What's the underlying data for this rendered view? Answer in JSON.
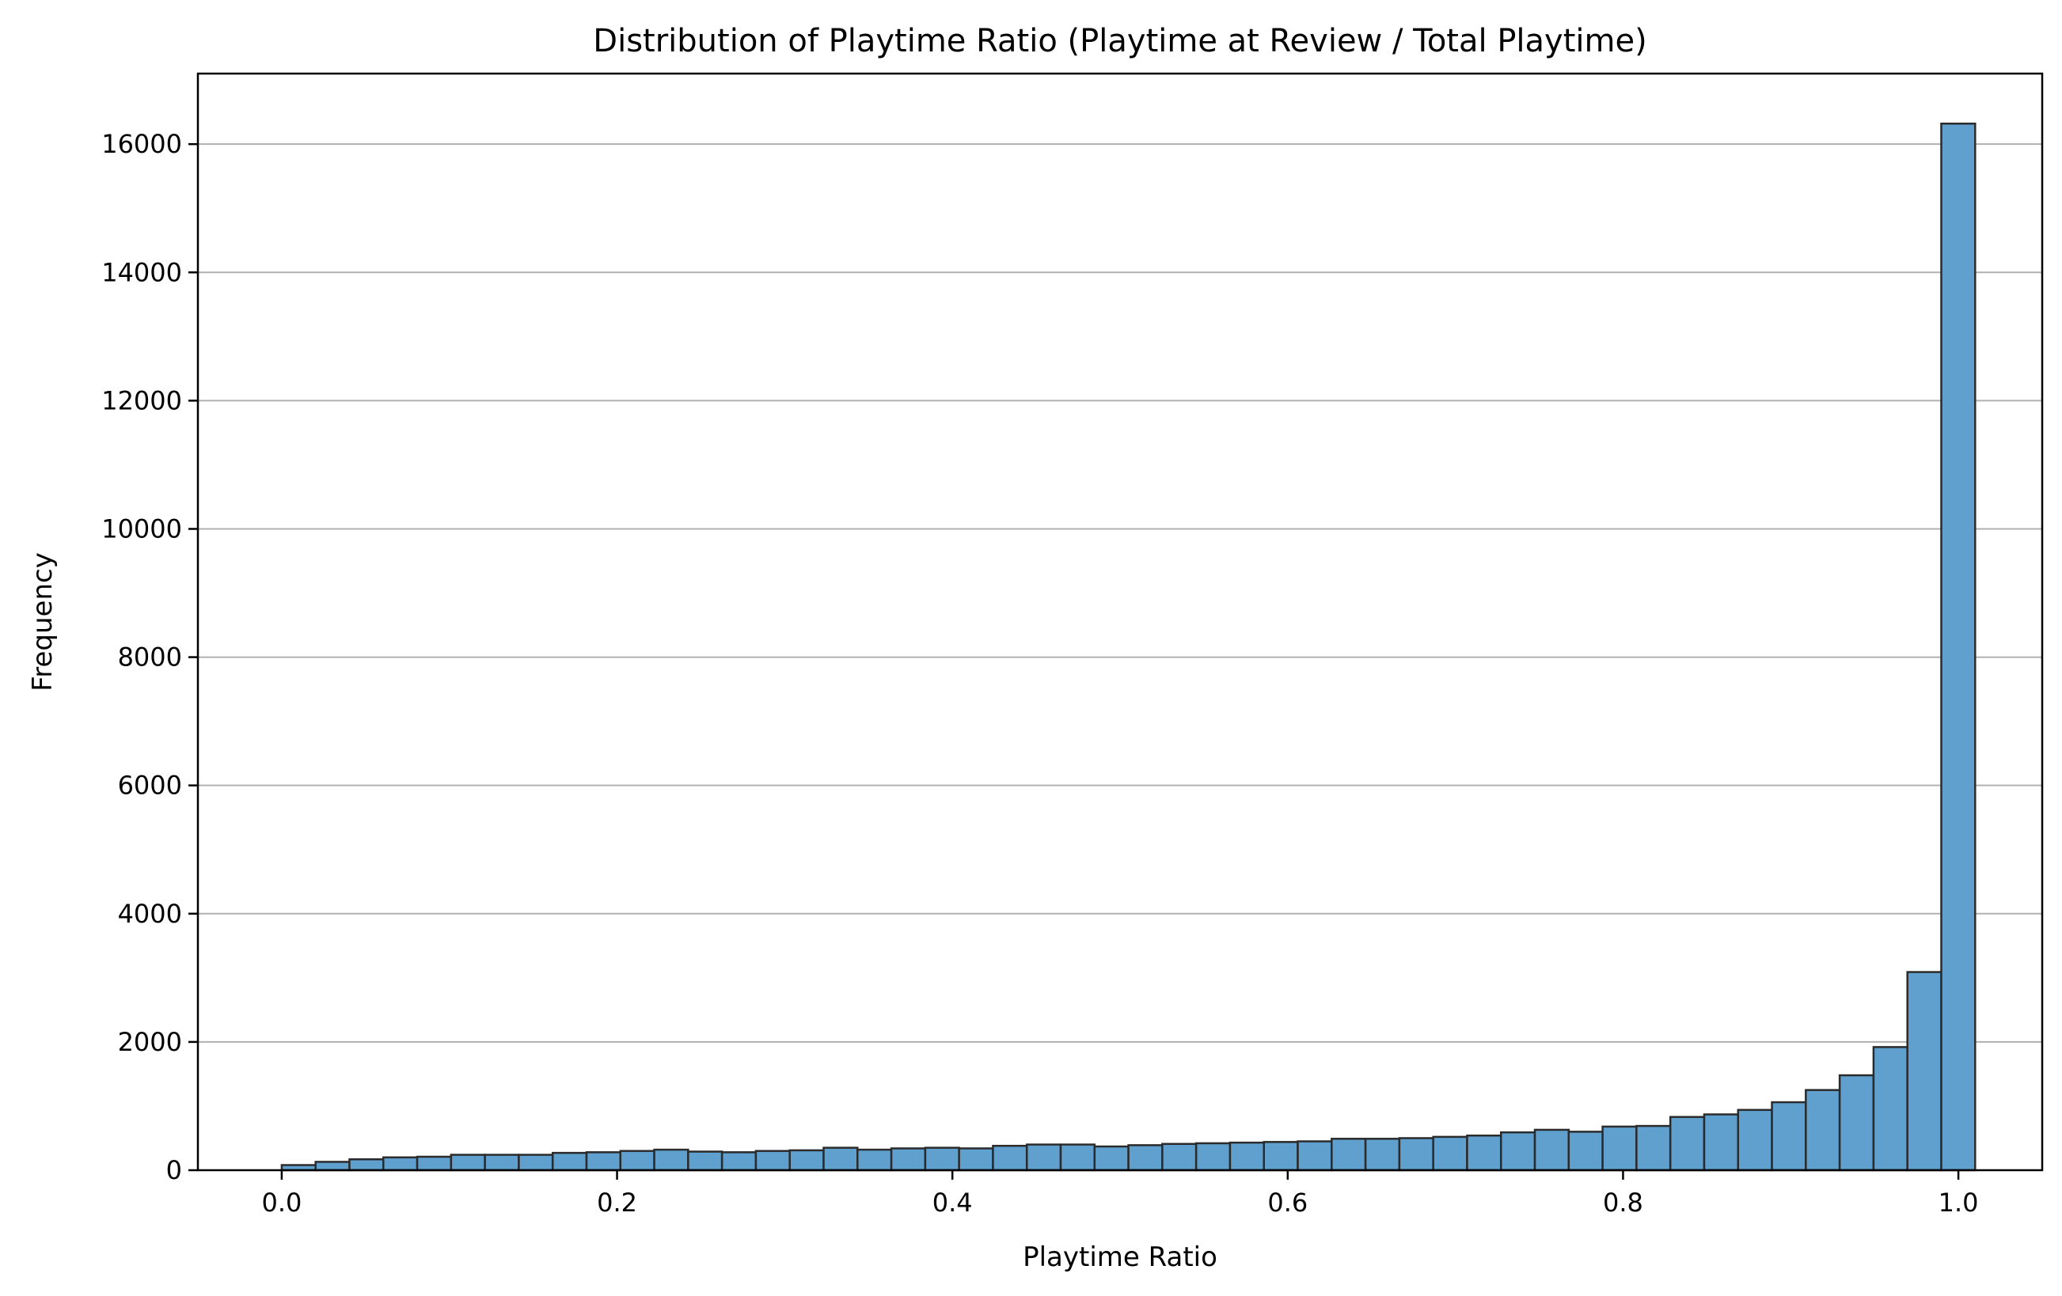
{
  "chart_data": {
    "type": "bar",
    "title": "Distribution of Playtime Ratio (Playtime at Review / Total Playtime)",
    "xlabel": "Playtime Ratio",
    "ylabel": "Frequency",
    "xlim": [
      -0.05,
      1.05
    ],
    "ylim": [
      0,
      17100
    ],
    "grid": "y-major",
    "bar_color": "#5fa0cf",
    "edge_color": "#2b2b2b",
    "x_ticks": [
      {
        "value": 0.0,
        "label": "0.0"
      },
      {
        "value": 0.2,
        "label": "0.2"
      },
      {
        "value": 0.4,
        "label": "0.4"
      },
      {
        "value": 0.6,
        "label": "0.6"
      },
      {
        "value": 0.8,
        "label": "0.8"
      },
      {
        "value": 1.0,
        "label": "1.0"
      }
    ],
    "y_ticks": [
      {
        "value": 0,
        "label": "0"
      },
      {
        "value": 2000,
        "label": "2000"
      },
      {
        "value": 4000,
        "label": "4000"
      },
      {
        "value": 6000,
        "label": "6000"
      },
      {
        "value": 8000,
        "label": "8000"
      },
      {
        "value": 10000,
        "label": "10000"
      },
      {
        "value": 12000,
        "label": "12000"
      },
      {
        "value": 14000,
        "label": "14000"
      },
      {
        "value": 16000,
        "label": "16000"
      }
    ],
    "bin_range": [
      0.0,
      1.01
    ],
    "bins": 50,
    "values": [
      80,
      130,
      170,
      200,
      210,
      240,
      240,
      240,
      270,
      280,
      300,
      320,
      290,
      280,
      300,
      310,
      350,
      320,
      340,
      350,
      340,
      380,
      400,
      400,
      370,
      390,
      410,
      420,
      430,
      440,
      450,
      490,
      490,
      500,
      520,
      540,
      590,
      630,
      600,
      680,
      690,
      830,
      870,
      940,
      1060,
      1250,
      1480,
      1920,
      3090,
      16320
    ]
  }
}
